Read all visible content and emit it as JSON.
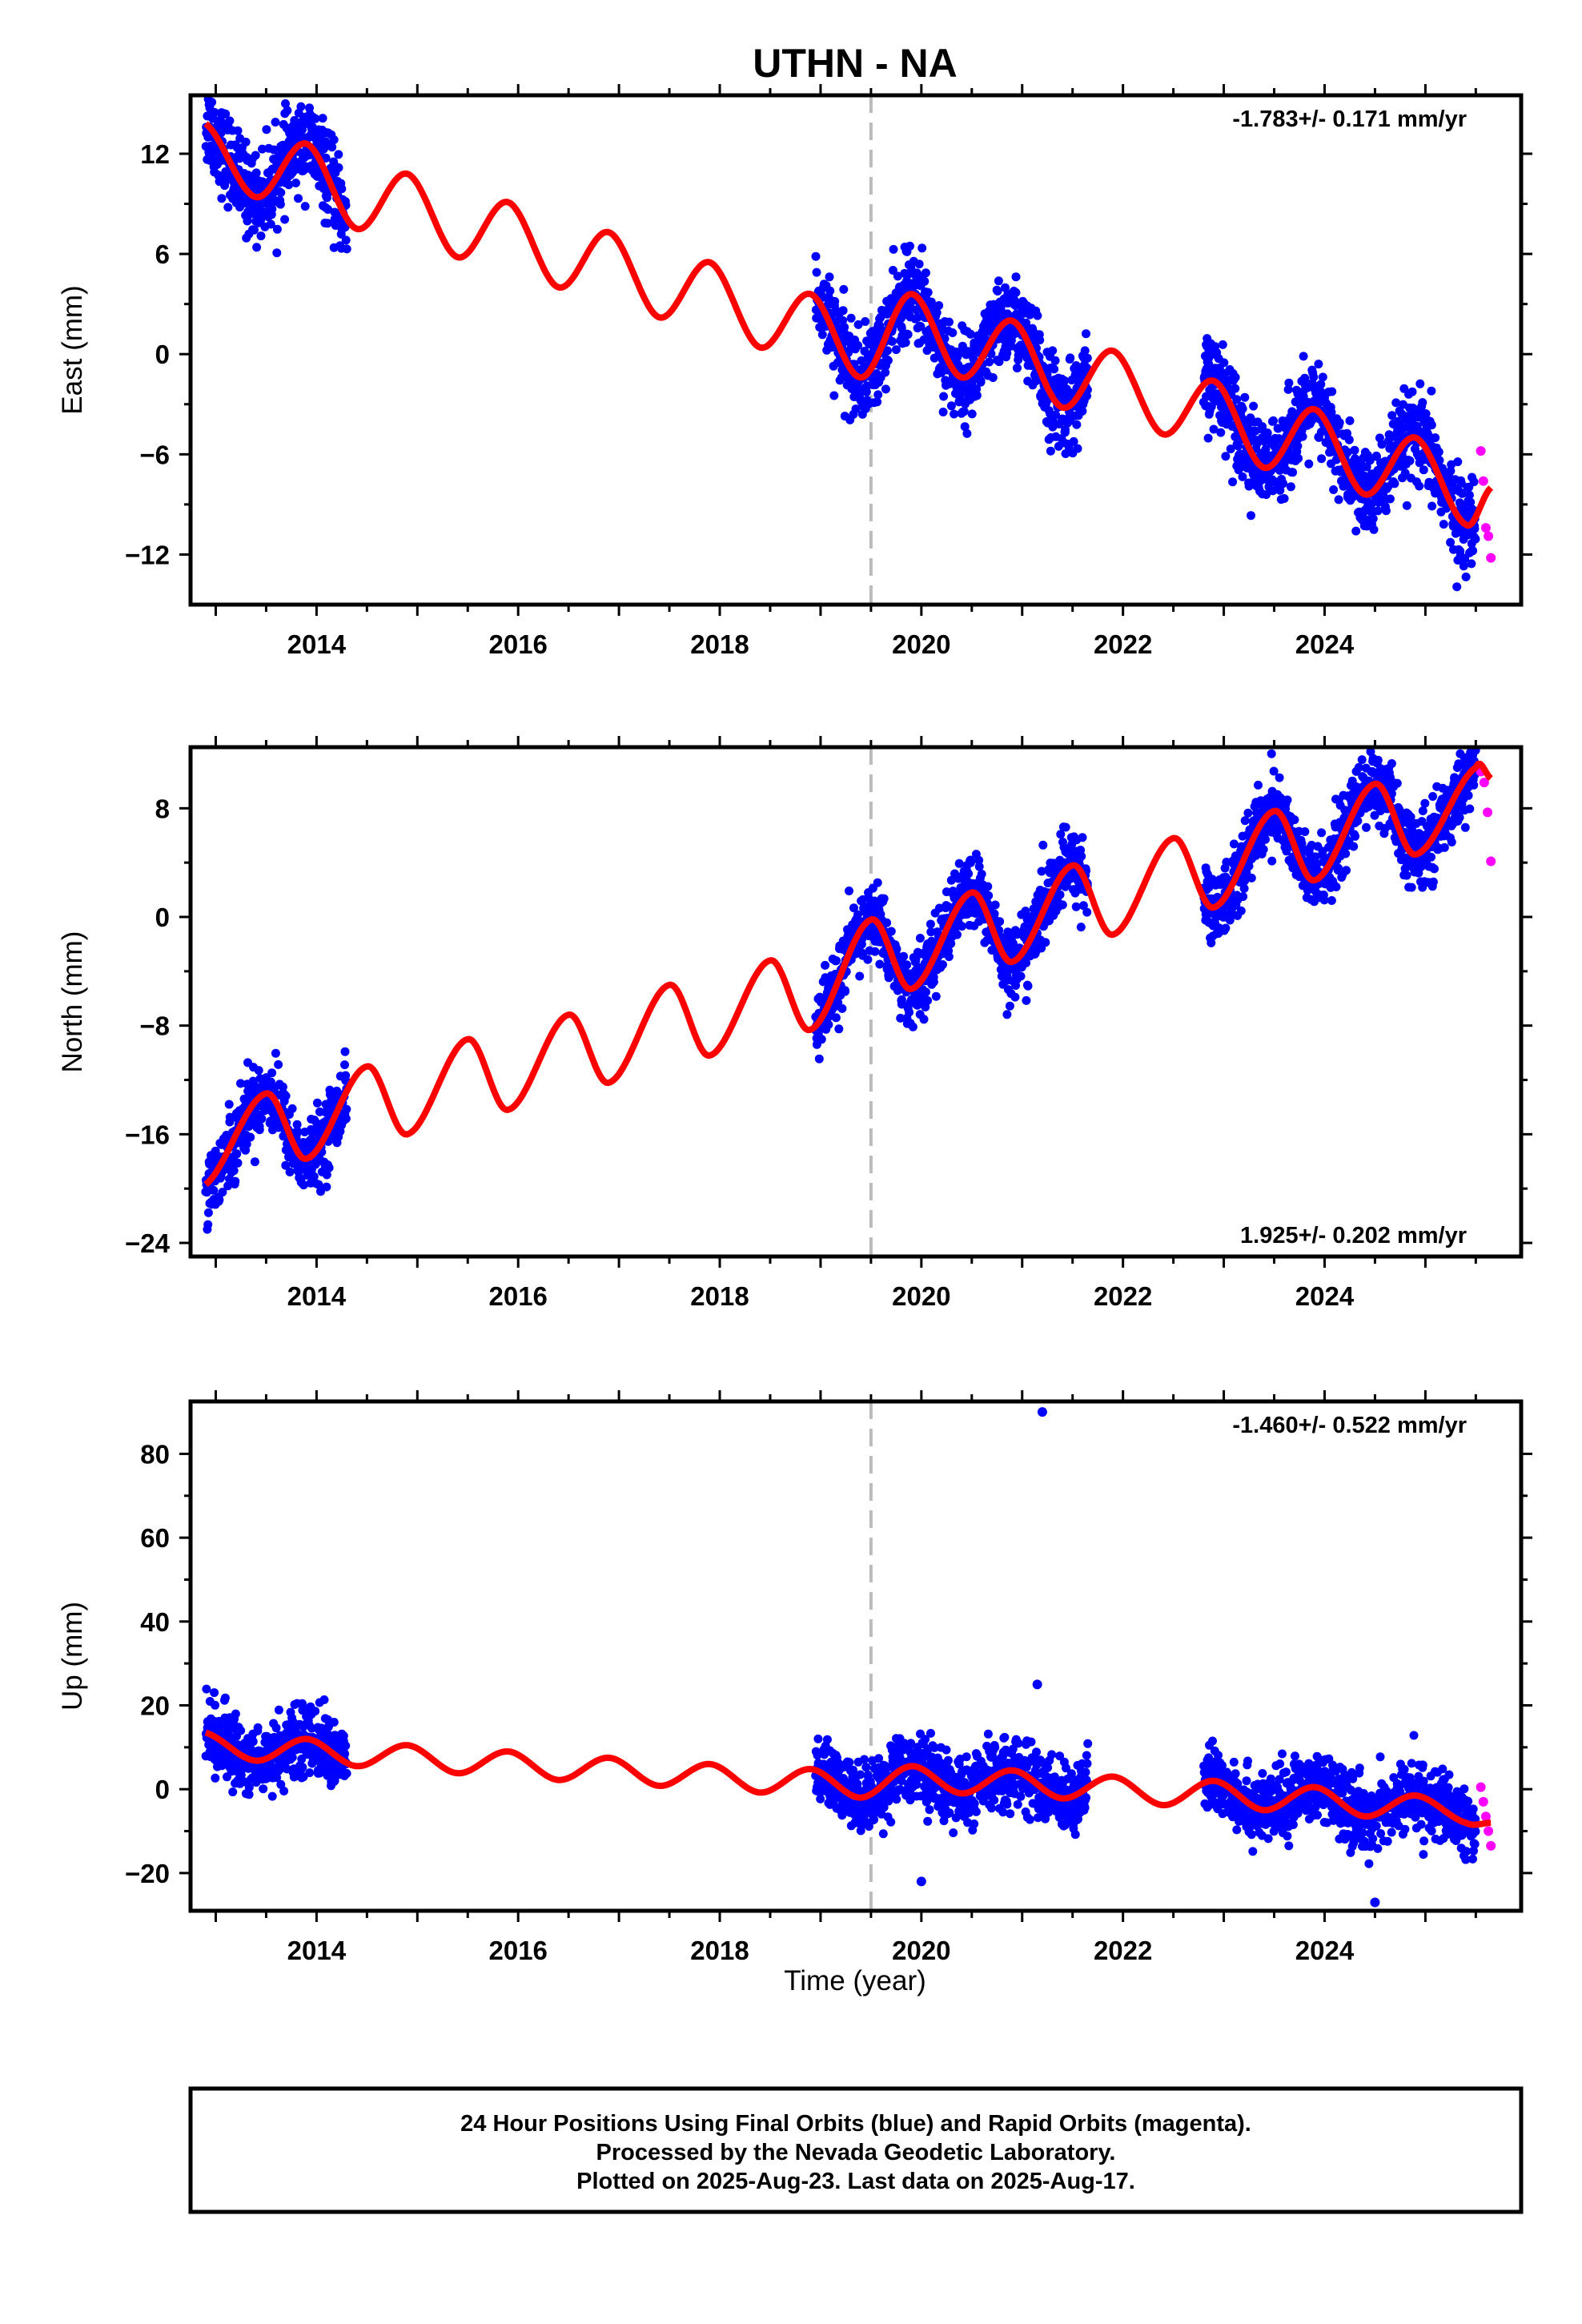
{
  "title": "UTHN - NA",
  "xlabel": "Time (year)",
  "colors": {
    "final": "#0000ff",
    "rapid": "#ff00ff",
    "model": "#ff0000",
    "event": "#bbbbbb"
  },
  "chart_data": [
    {
      "type": "scatter",
      "ylabel": "East (mm)",
      "rate_text": "-1.783+/- 0.171 mm/yr",
      "xlim": [
        2012.75,
        2025.95
      ],
      "ylim": [
        -15,
        15.5
      ],
      "yticks": [
        -12,
        -6,
        0,
        6,
        12
      ],
      "ytick_labels": [
        "−12",
        "−6",
        "0",
        "6",
        "12"
      ],
      "xticks": [
        2014,
        2016,
        2018,
        2020,
        2022,
        2024
      ],
      "xtick_labels": [
        "2014",
        "2016",
        "2018",
        "2020",
        "2022",
        "2024"
      ],
      "event_line_x": 2019.5,
      "final_data_spans": [
        [
          2012.9,
          2014.3
        ],
        [
          2018.95,
          2021.65
        ],
        [
          2022.8,
          2025.5
        ]
      ],
      "rapid_data_span": [
        2025.55,
        2025.65
      ],
      "model_knots": {
        "x": [
          2012.9,
          2013.4,
          2013.9,
          2014.4,
          2014.9,
          2015.4,
          2015.9,
          2016.4,
          2016.9,
          2017.4,
          2017.9,
          2018.4,
          2018.9,
          2019.4,
          2019.9,
          2020.4,
          2020.9,
          2021.4,
          2021.9,
          2022.4,
          2022.9,
          2023.4,
          2023.9,
          2024.4,
          2024.9,
          2025.4,
          2025.65
        ],
        "y": [
          13.8,
          9.4,
          12.6,
          7.5,
          10.8,
          5.8,
          9.1,
          4.0,
          7.3,
          2.2,
          5.5,
          0.4,
          3.6,
          -1.4,
          3.6,
          -1.4,
          2.0,
          -3.2,
          0.2,
          -4.8,
          -1.6,
          -6.8,
          -3.3,
          -8.4,
          -5.0,
          -10.2,
          -8.0
        ]
      },
      "points_per_year": 330,
      "scatter_sigma": 1.3,
      "rapid_points": [
        -5.8,
        -7.6,
        -10.4,
        -10.9,
        -12.2
      ]
    },
    {
      "type": "scatter",
      "ylabel": "North (mm)",
      "rate_text": "1.925+/- 0.202 mm/yr",
      "xlim": [
        2012.75,
        2025.95
      ],
      "ylim": [
        -25,
        12.5
      ],
      "yticks": [
        -24,
        -16,
        -8,
        0,
        8
      ],
      "ytick_labels": [
        "−24",
        "−16",
        "−8",
        "0",
        "8"
      ],
      "xticks": [
        2014,
        2016,
        2018,
        2020,
        2022,
        2024
      ],
      "xtick_labels": [
        "2014",
        "2016",
        "2018",
        "2020",
        "2022",
        "2024"
      ],
      "event_line_x": 2019.5,
      "final_data_spans": [
        [
          2012.9,
          2014.3
        ],
        [
          2018.95,
          2021.65
        ],
        [
          2022.8,
          2025.5
        ]
      ],
      "rapid_data_span": [
        2025.55,
        2025.65
      ],
      "model_knots": {
        "x": [
          2012.9,
          2013.5,
          2013.9,
          2014.5,
          2014.9,
          2015.5,
          2015.9,
          2016.5,
          2016.9,
          2017.5,
          2017.9,
          2018.5,
          2018.9,
          2019.5,
          2019.9,
          2020.5,
          2020.9,
          2021.5,
          2021.9,
          2022.5,
          2022.9,
          2023.5,
          2023.9,
          2024.5,
          2024.9,
          2025.5,
          2025.65
        ],
        "y": [
          -19.7,
          -13.0,
          -17.8,
          -11.0,
          -16.0,
          -9.0,
          -14.2,
          -7.2,
          -12.2,
          -5.0,
          -10.2,
          -3.2,
          -8.3,
          -0.2,
          -5.3,
          1.8,
          -3.3,
          3.8,
          -1.3,
          5.8,
          0.7,
          7.8,
          2.7,
          9.8,
          4.6,
          11.0,
          10.2
        ]
      },
      "points_per_year": 330,
      "scatter_sigma": 1.3,
      "rapid_points": [
        10.7,
        9.9,
        7.7,
        4.1
      ]
    },
    {
      "type": "scatter",
      "ylabel": "Up (mm)",
      "rate_text": "-1.460+/- 0.522 mm/yr",
      "xlim": [
        2012.75,
        2025.95
      ],
      "ylim": [
        -29,
        92.5
      ],
      "yticks": [
        -20,
        0,
        20,
        40,
        60,
        80
      ],
      "ytick_labels": [
        "−20",
        "0",
        "20",
        "40",
        "60",
        "80"
      ],
      "xticks": [
        2014,
        2016,
        2018,
        2020,
        2022,
        2024
      ],
      "xtick_labels": [
        "2014",
        "2016",
        "2018",
        "2020",
        "2022",
        "2024"
      ],
      "event_line_x": 2019.5,
      "final_data_spans": [
        [
          2012.9,
          2014.3
        ],
        [
          2018.95,
          2021.65
        ],
        [
          2022.8,
          2025.5
        ]
      ],
      "rapid_data_span": [
        2025.55,
        2025.65
      ],
      "model_knots": {
        "x": [
          2012.9,
          2013.4,
          2013.9,
          2014.4,
          2014.9,
          2015.4,
          2015.9,
          2016.4,
          2016.9,
          2017.4,
          2017.9,
          2018.4,
          2018.9,
          2019.4,
          2019.9,
          2020.4,
          2020.9,
          2021.4,
          2021.9,
          2022.4,
          2022.9,
          2023.4,
          2023.9,
          2024.4,
          2024.9,
          2025.4,
          2025.65
        ],
        "y": [
          13.5,
          6.8,
          12.0,
          5.5,
          10.5,
          3.8,
          9.0,
          2.2,
          7.5,
          0.8,
          6.0,
          -0.8,
          4.8,
          -2.0,
          5.5,
          -1.0,
          4.5,
          -2.2,
          3.0,
          -3.8,
          2.0,
          -5.0,
          0.5,
          -6.5,
          -1.5,
          -8.0,
          -8.0
        ]
      },
      "points_per_year": 330,
      "scatter_sigma": 4.0,
      "outliers": [
        [
          2021.2,
          90
        ],
        [
          2021.15,
          25
        ],
        [
          2024.5,
          -27
        ],
        [
          2020.0,
          -22
        ]
      ],
      "rapid_points": [
        0.5,
        -3.0,
        -6.5,
        -10.0,
        -13.5
      ]
    }
  ],
  "footer": {
    "line1": "24 Hour Positions Using Final Orbits (blue) and Rapid Orbits (magenta).",
    "line2": "Processed by the Nevada Geodetic Laboratory.",
    "line3": "Plotted on 2025-Aug-23. Last data on 2025-Aug-17."
  }
}
